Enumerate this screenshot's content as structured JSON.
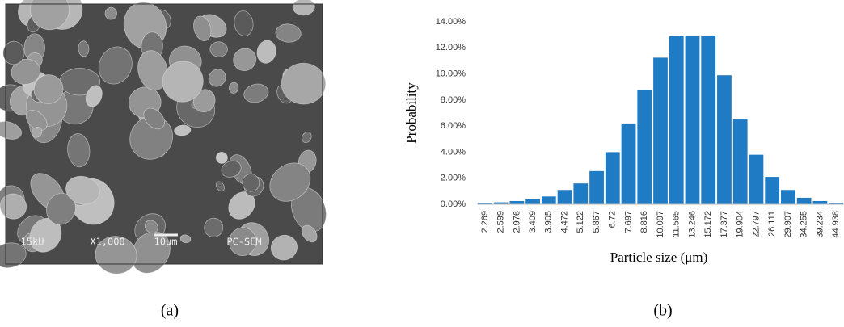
{
  "micrograph": {
    "labels": [
      "15kU",
      "X1,000",
      "10µm",
      "PC-SEM"
    ]
  },
  "captions": [
    "(a)",
    "(b)"
  ],
  "chart_data": {
    "type": "bar",
    "x_label": "Particle size (μm)",
    "y_label": "Probability",
    "categories": [
      "2.269",
      "2.599",
      "2.976",
      "3.409",
      "3.905",
      "4.472",
      "5.122",
      "5.867",
      "6.72",
      "7.697",
      "8.816",
      "10.097",
      "11.565",
      "13.246",
      "15.172",
      "17.377",
      "19.904",
      "22.797",
      "26.111",
      "29.907",
      "34.255",
      "39.234",
      "44.938"
    ],
    "values": [
      0.1,
      0.15,
      0.25,
      0.4,
      0.6,
      1.1,
      1.6,
      2.55,
      4.0,
      6.2,
      8.75,
      11.25,
      12.9,
      12.95,
      12.95,
      9.9,
      6.5,
      3.8,
      2.1,
      1.1,
      0.5,
      0.25,
      0.1
    ],
    "color": "#1f7bc4",
    "ylim": [
      0,
      14
    ],
    "yticks": [
      {
        "value": 0,
        "label": "0.00%"
      },
      {
        "value": 2,
        "label": "2.00%"
      },
      {
        "value": 4,
        "label": "4.00%"
      },
      {
        "value": 6,
        "label": "6.00%"
      },
      {
        "value": 8,
        "label": "8.00%"
      },
      {
        "value": 10,
        "label": "10.00%"
      },
      {
        "value": 12,
        "label": "12.00%"
      },
      {
        "value": 14,
        "label": "14.00%"
      }
    ],
    "grid": false
  }
}
